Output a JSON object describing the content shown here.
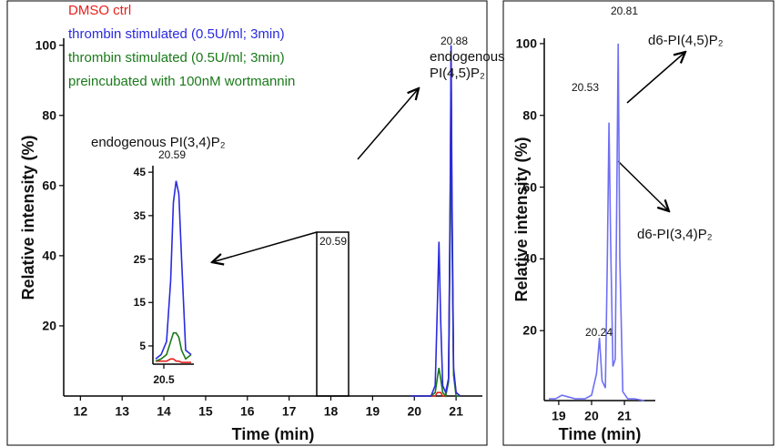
{
  "chart_data": [
    {
      "type": "line",
      "xlabel": "Time (min)",
      "ylabel": "Relative intensity (%)",
      "xlim": [
        11.6,
        21.63
      ],
      "ylim": [
        0,
        102
      ],
      "xticks": [
        12,
        13,
        14,
        15,
        16,
        17,
        18,
        19,
        20,
        21
      ],
      "yticks": [
        20,
        40,
        60,
        80,
        100
      ],
      "x": [
        19.9,
        20.4,
        20.5,
        20.55,
        20.59,
        20.63,
        20.68,
        20.75,
        20.82,
        20.86,
        20.88,
        20.9,
        20.94,
        21.0,
        21.1
      ],
      "series": [
        {
          "name": "DMSO ctrl",
          "color": "#e8201c",
          "values": [
            0,
            0,
            0,
            1,
            1,
            1,
            0,
            0,
            5,
            55,
            96,
            55,
            7,
            1,
            0
          ]
        },
        {
          "name": "thrombin stimulated (0.5U/ml; 3min)\npreincubated with 100nM wortmannin",
          "color": "#1a7a1a",
          "values": [
            0,
            0,
            1,
            5,
            8,
            5,
            1,
            0,
            4,
            50,
            92,
            50,
            6,
            0,
            0
          ]
        },
        {
          "name": "thrombin stimulated (0.5U/ml; 3min)",
          "color": "#2a2ae0",
          "values": [
            0,
            0,
            3,
            25,
            44,
            22,
            3,
            1,
            5,
            60,
            100,
            60,
            8,
            1,
            0
          ]
        }
      ],
      "annotations": [
        "20.88",
        "20.59",
        "endogenous\nPI(4,5)P₂"
      ]
    },
    {
      "type": "line",
      "title": "endogenous PI(3,4)P₂",
      "xlim": [
        20.42,
        20.72
      ],
      "ylim": [
        0.8,
        46.5
      ],
      "xticks": [
        20.5
      ],
      "yticks": [
        5,
        15,
        25,
        35,
        45
      ],
      "x": [
        20.44,
        20.48,
        20.52,
        20.55,
        20.57,
        20.59,
        20.61,
        20.63,
        20.66,
        20.7
      ],
      "series": [
        {
          "color": "#e8201c",
          "values": [
            1.5,
            1.5,
            1.5,
            2,
            2,
            1.5,
            1.5,
            1.2,
            1.2,
            1.2
          ]
        },
        {
          "color": "#1a7a1a",
          "values": [
            1.5,
            2,
            3,
            6,
            8,
            8,
            7,
            4,
            2,
            3
          ]
        },
        {
          "color": "#2a2ae0",
          "values": [
            2,
            3,
            6,
            20,
            38,
            43,
            40,
            25,
            4,
            3
          ]
        }
      ],
      "annotations": [
        "20.59"
      ]
    },
    {
      "type": "line",
      "xlabel": "Time (min)",
      "ylabel": "Relative intensity (%)",
      "xlim": [
        18.56,
        21.94
      ],
      "ylim": [
        0.5,
        101.5
      ],
      "xticks": [
        19,
        20,
        21
      ],
      "yticks": [
        20,
        40,
        60,
        80,
        100
      ],
      "x": [
        18.7,
        18.9,
        19.1,
        19.3,
        19.5,
        19.8,
        20.0,
        20.15,
        20.24,
        20.32,
        20.42,
        20.48,
        20.53,
        20.58,
        20.65,
        20.72,
        20.77,
        20.81,
        20.86,
        20.95,
        21.1,
        21.3,
        21.6
      ],
      "series": [
        {
          "color": "#6f6ff5",
          "values": [
            1,
            1,
            2,
            1.5,
            1,
            1,
            2,
            8,
            18,
            6,
            4,
            40,
            78,
            45,
            10,
            12,
            60,
            100,
            40,
            3,
            1,
            1,
            0.5
          ]
        }
      ],
      "annotations": [
        "20.81",
        "20.53",
        "20.24",
        "d6-PI(4,5)P₂",
        "d6-PI(3,4)P₂"
      ]
    }
  ]
}
